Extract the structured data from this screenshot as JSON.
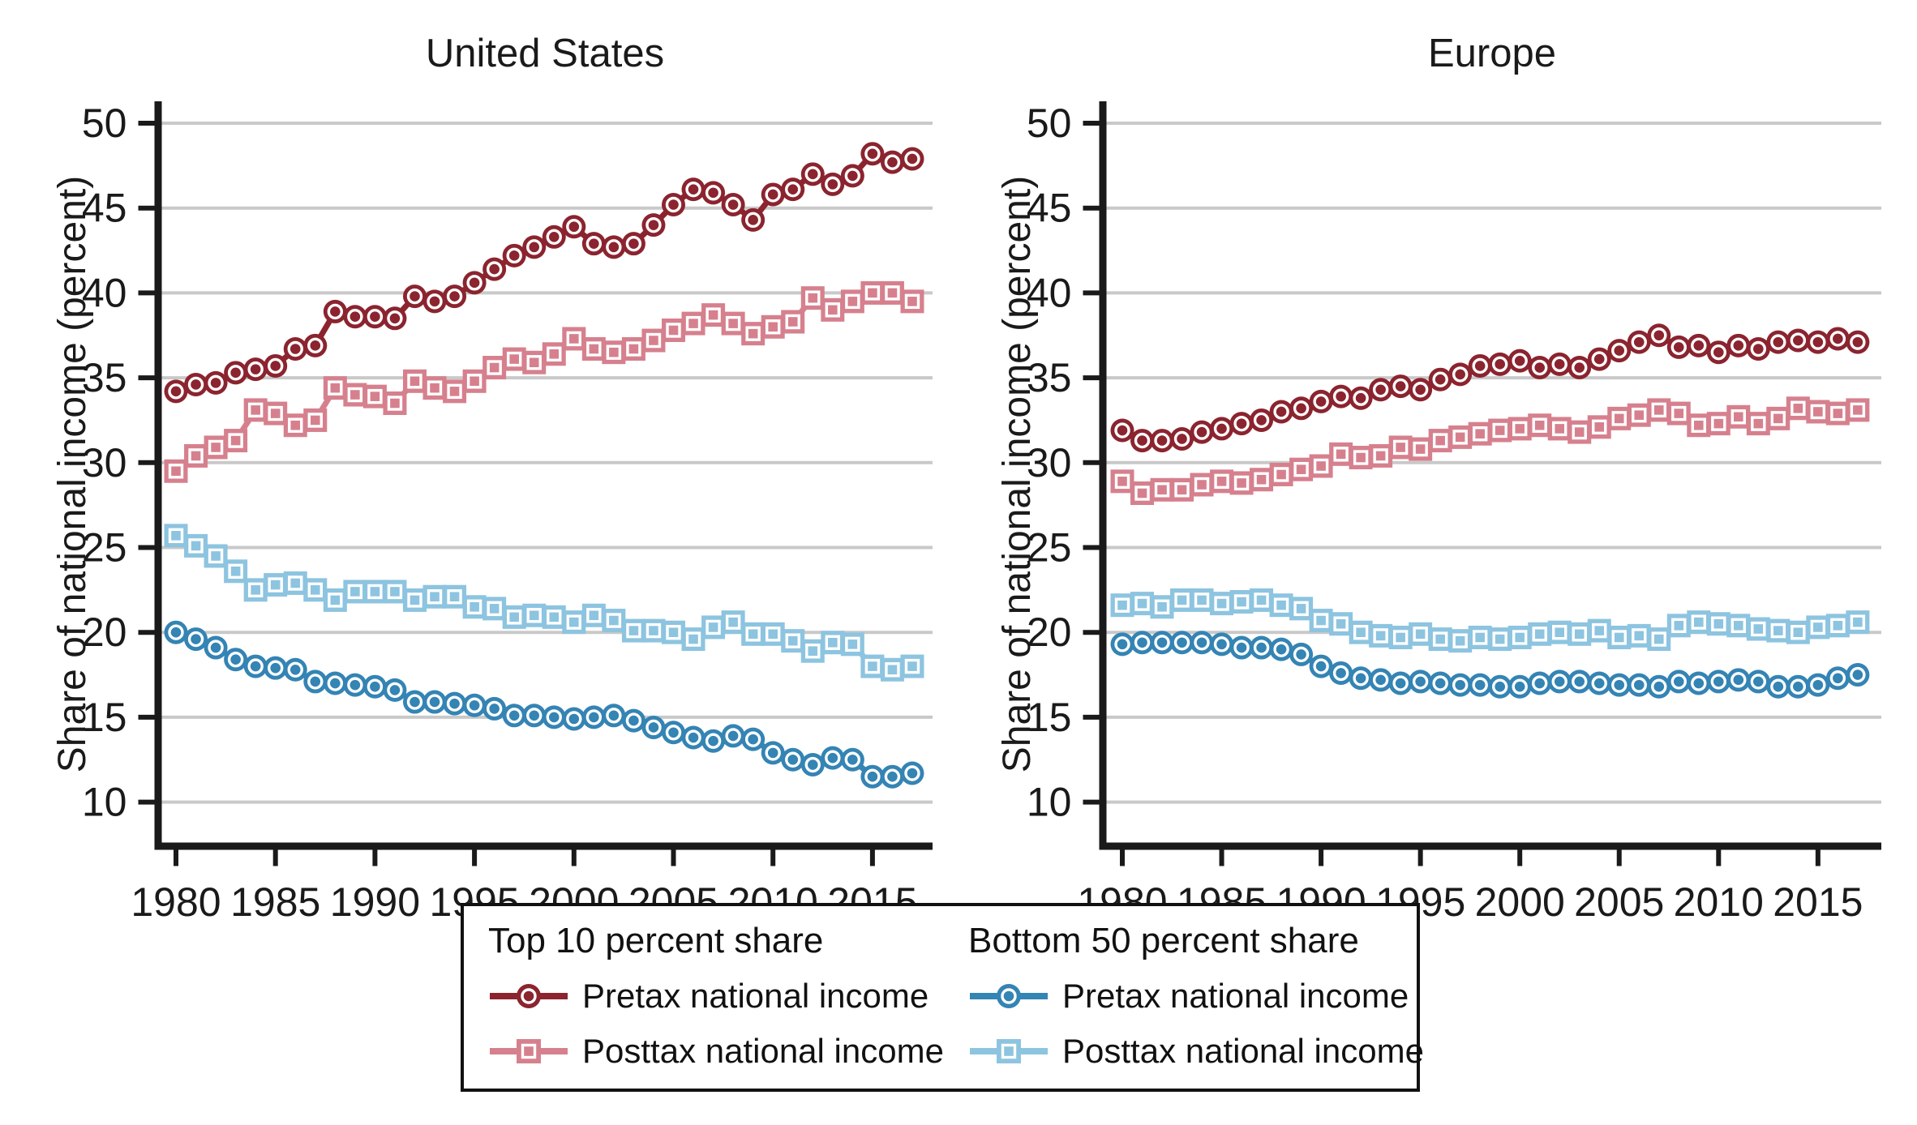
{
  "chart_data": [
    {
      "type": "line",
      "title": "United States",
      "ylabel": "Share of national income  (percent)",
      "xlabel": "",
      "grid": "horizontal",
      "legend_position": "bottom-box",
      "xlim": [
        1979,
        2018.3
      ],
      "ylim": [
        7.5,
        53
      ],
      "years": [
        1980,
        1981,
        1982,
        1983,
        1984,
        1985,
        1986,
        1987,
        1988,
        1989,
        1990,
        1991,
        1992,
        1993,
        1994,
        1995,
        1996,
        1997,
        1998,
        1999,
        2000,
        2001,
        2002,
        2003,
        2004,
        2005,
        2006,
        2007,
        2008,
        2009,
        2010,
        2011,
        2012,
        2013,
        2014,
        2015,
        2016,
        2017
      ],
      "xticks": [
        1980,
        1985,
        1990,
        1995,
        2000,
        2005,
        2010,
        2015
      ],
      "yticks": [
        50,
        45,
        40,
        35,
        30,
        25,
        20,
        15,
        10
      ],
      "series": [
        {
          "id": "top10-pretax",
          "group": "Top 10 percent share",
          "name": "Pretax national income",
          "color": "#8b242f",
          "marker": "circle",
          "values": [
            34.2,
            34.6,
            34.7,
            35.3,
            35.5,
            35.7,
            36.7,
            36.9,
            38.9,
            38.6,
            38.6,
            38.5,
            39.8,
            39.5,
            39.8,
            40.6,
            41.4,
            42.2,
            42.7,
            43.3,
            43.9,
            42.9,
            42.7,
            42.9,
            44.0,
            45.2,
            46.1,
            45.9,
            45.2,
            44.3,
            45.8,
            46.1,
            47.0,
            46.4,
            46.9,
            48.2,
            47.7,
            47.9
          ]
        },
        {
          "id": "top10-posttax",
          "group": "Top 10 percent share",
          "name": "Posttax national income",
          "color": "#d6808e",
          "marker": "square",
          "values": [
            29.5,
            30.4,
            30.9,
            31.3,
            33.1,
            32.9,
            32.2,
            32.5,
            34.4,
            34.0,
            33.9,
            33.5,
            34.8,
            34.4,
            34.2,
            34.8,
            35.6,
            36.1,
            35.9,
            36.4,
            37.3,
            36.7,
            36.5,
            36.7,
            37.2,
            37.8,
            38.2,
            38.7,
            38.2,
            37.6,
            38.0,
            38.3,
            39.7,
            39.0,
            39.5,
            40.0,
            40.0,
            39.5
          ]
        },
        {
          "id": "bottom50-pretax",
          "group": "Bottom 50 percent share",
          "name": "Pretax national income",
          "color": "#3484b4",
          "marker": "circle",
          "values": [
            20.0,
            19.6,
            19.1,
            18.4,
            18.0,
            17.9,
            17.8,
            17.1,
            17.0,
            16.9,
            16.8,
            16.6,
            15.9,
            15.9,
            15.8,
            15.7,
            15.5,
            15.1,
            15.1,
            15.0,
            14.9,
            15.0,
            15.1,
            14.8,
            14.4,
            14.1,
            13.8,
            13.6,
            13.9,
            13.7,
            12.9,
            12.5,
            12.2,
            12.6,
            12.5,
            11.5,
            11.5,
            11.7
          ]
        },
        {
          "id": "bottom50-posttax",
          "group": "Bottom 50 percent share",
          "name": "Posttax national income",
          "color": "#8dc4e0",
          "marker": "square",
          "values": [
            25.7,
            25.1,
            24.5,
            23.6,
            22.5,
            22.8,
            22.9,
            22.5,
            21.9,
            22.4,
            22.4,
            22.4,
            21.9,
            22.1,
            22.1,
            21.5,
            21.4,
            20.9,
            21.0,
            20.9,
            20.6,
            21.0,
            20.7,
            20.1,
            20.1,
            20.0,
            19.6,
            20.3,
            20.6,
            19.9,
            19.9,
            19.5,
            18.9,
            19.4,
            19.3,
            18.0,
            17.8,
            18.0
          ]
        }
      ]
    },
    {
      "type": "line",
      "title": "Europe",
      "ylabel": "Share of national income  (percent)",
      "xlabel": "",
      "grid": "horizontal",
      "legend_position": "bottom-box",
      "xlim": [
        1979,
        2018.3
      ],
      "ylim": [
        7.5,
        53
      ],
      "years": [
        1980,
        1981,
        1982,
        1983,
        1984,
        1985,
        1986,
        1987,
        1988,
        1989,
        1990,
        1991,
        1992,
        1993,
        1994,
        1995,
        1996,
        1997,
        1998,
        1999,
        2000,
        2001,
        2002,
        2003,
        2004,
        2005,
        2006,
        2007,
        2008,
        2009,
        2010,
        2011,
        2012,
        2013,
        2014,
        2015,
        2016,
        2017
      ],
      "xticks": [
        1980,
        1985,
        1990,
        1995,
        2000,
        2005,
        2010,
        2015
      ],
      "yticks": [
        50,
        45,
        40,
        35,
        30,
        25,
        20,
        15,
        10
      ],
      "series": [
        {
          "id": "top10-pretax",
          "group": "Top 10 percent share",
          "name": "Pretax national income",
          "color": "#8b242f",
          "marker": "circle",
          "values": [
            31.9,
            31.3,
            31.3,
            31.4,
            31.8,
            32.0,
            32.3,
            32.5,
            33.0,
            33.2,
            33.6,
            33.9,
            33.8,
            34.3,
            34.5,
            34.3,
            34.9,
            35.2,
            35.7,
            35.8,
            36.0,
            35.6,
            35.8,
            35.6,
            36.1,
            36.6,
            37.1,
            37.5,
            36.8,
            36.9,
            36.5,
            36.9,
            36.7,
            37.1,
            37.2,
            37.1,
            37.3,
            37.1
          ]
        },
        {
          "id": "top10-posttax",
          "group": "Top 10 percent share",
          "name": "Posttax national income",
          "color": "#d6808e",
          "marker": "square",
          "values": [
            28.9,
            28.2,
            28.4,
            28.4,
            28.7,
            28.9,
            28.8,
            29.0,
            29.3,
            29.6,
            29.8,
            30.5,
            30.3,
            30.4,
            30.9,
            30.8,
            31.3,
            31.5,
            31.7,
            31.9,
            32.0,
            32.2,
            32.0,
            31.8,
            32.1,
            32.6,
            32.8,
            33.1,
            32.9,
            32.2,
            32.3,
            32.7,
            32.3,
            32.6,
            33.2,
            33.0,
            32.9,
            33.1
          ]
        },
        {
          "id": "bottom50-pretax",
          "group": "Bottom 50 percent share",
          "name": "Pretax national income",
          "color": "#3484b4",
          "marker": "circle",
          "values": [
            19.3,
            19.4,
            19.4,
            19.4,
            19.4,
            19.3,
            19.1,
            19.1,
            19.0,
            18.7,
            18.0,
            17.6,
            17.3,
            17.2,
            17.0,
            17.1,
            17.0,
            16.9,
            16.9,
            16.8,
            16.8,
            17.0,
            17.1,
            17.1,
            17.0,
            16.9,
            16.9,
            16.8,
            17.1,
            17.0,
            17.1,
            17.2,
            17.1,
            16.8,
            16.8,
            16.9,
            17.3,
            17.5
          ]
        },
        {
          "id": "bottom50-posttax",
          "group": "Bottom 50 percent share",
          "name": "Posttax national income",
          "color": "#8dc4e0",
          "marker": "square",
          "values": [
            21.6,
            21.7,
            21.5,
            21.9,
            21.9,
            21.7,
            21.8,
            21.9,
            21.6,
            21.4,
            20.7,
            20.5,
            20.0,
            19.8,
            19.7,
            19.9,
            19.6,
            19.5,
            19.7,
            19.6,
            19.7,
            19.9,
            20.0,
            19.9,
            20.1,
            19.7,
            19.8,
            19.6,
            20.4,
            20.6,
            20.5,
            20.4,
            20.2,
            20.1,
            20.0,
            20.3,
            20.4,
            20.6
          ]
        }
      ]
    }
  ],
  "legend": {
    "groups": [
      {
        "title": "Top 10 percent share",
        "items": [
          {
            "label": "Pretax national income",
            "panel": 0,
            "series": 0
          },
          {
            "label": "Posttax national income",
            "panel": 0,
            "series": 1
          }
        ]
      },
      {
        "title": "Bottom 50 percent share",
        "items": [
          {
            "label": "Pretax national income",
            "panel": 0,
            "series": 2
          },
          {
            "label": "Posttax national income",
            "panel": 0,
            "series": 3
          }
        ]
      }
    ]
  },
  "colors": {
    "top10_pretax": "#8b242f",
    "top10_posttax": "#d6808e",
    "bottom50_pretax": "#3484b4",
    "bottom50_posttax": "#8dc4e0",
    "gridline": "#c9c9c9",
    "axis": "#1a1a1a",
    "background": "#ffffff"
  }
}
